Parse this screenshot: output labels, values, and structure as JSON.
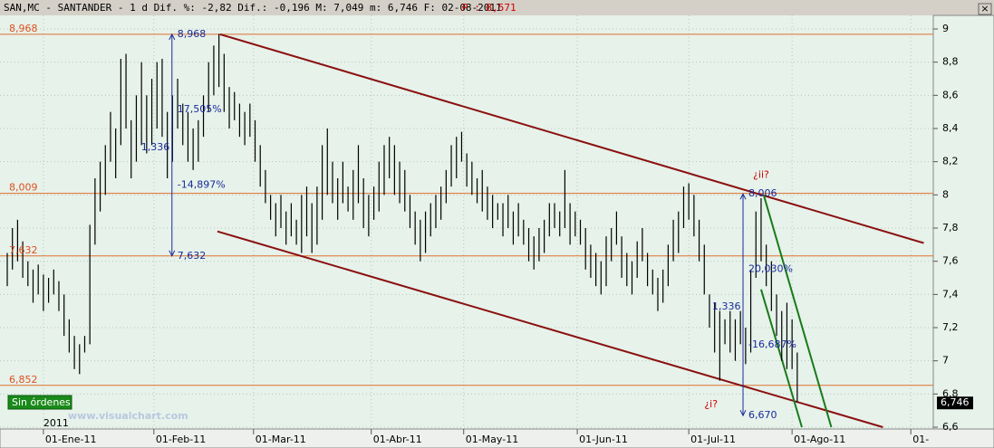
{
  "chart_data": {
    "type": "range-bar",
    "header": "SAN,MC - SANTANDER -  1 d Dif. %: -2,82 Dif.: -0,196 M: 7,049 m: 6,746 F: 02-08-2011",
    "header_price": "P : 8,571",
    "color": "#000000",
    "lows": [
      7.45,
      7.55,
      7.6,
      7.5,
      7.45,
      7.35,
      7.4,
      7.3,
      7.35,
      7.4,
      7.3,
      7.15,
      7.05,
      6.95,
      6.92,
      7.05,
      7.1,
      7.7,
      7.9,
      8.0,
      8.2,
      8.1,
      8.3,
      8.4,
      8.1,
      8.2,
      8.3,
      8.25,
      8.3,
      8.4,
      8.35,
      8.1,
      8.2,
      8.4,
      8.3,
      8.2,
      8.15,
      8.2,
      8.35,
      8.5,
      8.6,
      8.65,
      8.5,
      8.4,
      8.45,
      8.35,
      8.3,
      8.35,
      8.2,
      8.05,
      7.95,
      7.85,
      7.75,
      7.8,
      7.7,
      7.75,
      7.7,
      7.65,
      7.75,
      7.65,
      7.7,
      7.85,
      8.0,
      7.95,
      7.85,
      7.95,
      7.9,
      7.85,
      7.95,
      7.8,
      7.75,
      7.85,
      7.9,
      8.0,
      8.1,
      8.0,
      7.95,
      7.9,
      7.8,
      7.7,
      7.6,
      7.65,
      7.75,
      7.8,
      7.85,
      7.95,
      8.05,
      8.1,
      8.2,
      8.05,
      8.0,
      7.95,
      7.9,
      7.85,
      7.8,
      7.85,
      7.75,
      7.8,
      7.7,
      7.75,
      7.7,
      7.6,
      7.55,
      7.6,
      7.65,
      7.75,
      7.8,
      7.75,
      7.8,
      7.7,
      7.75,
      7.7,
      7.55,
      7.5,
      7.45,
      7.4,
      7.45,
      7.6,
      7.7,
      7.5,
      7.45,
      7.4,
      7.5,
      7.6,
      7.45,
      7.4,
      7.3,
      7.35,
      7.45,
      7.6,
      7.65,
      7.8,
      7.85,
      7.75,
      7.6,
      7.4,
      7.2,
      7.05,
      6.88,
      7.1,
      7.05,
      7.0,
      7.1,
      6.98,
      7.05,
      7.5,
      7.6,
      7.45,
      7.3,
      7.15,
      7.0,
      6.95,
      6.95,
      6.75
    ],
    "highs": [
      7.65,
      7.8,
      7.85,
      7.72,
      7.6,
      7.55,
      7.58,
      7.52,
      7.5,
      7.55,
      7.48,
      7.4,
      7.25,
      7.15,
      7.1,
      7.15,
      7.82,
      8.1,
      8.2,
      8.3,
      8.5,
      8.4,
      8.82,
      8.85,
      8.45,
      8.6,
      8.8,
      8.6,
      8.7,
      8.8,
      8.82,
      8.5,
      8.6,
      8.7,
      8.55,
      8.5,
      8.4,
      8.45,
      8.6,
      8.8,
      8.9,
      8.97,
      8.85,
      8.65,
      8.62,
      8.55,
      8.5,
      8.55,
      8.45,
      8.3,
      8.15,
      8.0,
      7.95,
      8.0,
      7.9,
      7.95,
      7.85,
      8.0,
      8.05,
      7.95,
      8.05,
      8.3,
      8.4,
      8.2,
      8.1,
      8.2,
      8.05,
      8.15,
      8.3,
      8.1,
      8.0,
      8.05,
      8.2,
      8.3,
      8.35,
      8.3,
      8.2,
      8.15,
      8.0,
      7.9,
      7.85,
      7.9,
      7.95,
      8.0,
      8.05,
      8.15,
      8.3,
      8.35,
      8.38,
      8.25,
      8.2,
      8.1,
      8.15,
      8.05,
      8.0,
      7.95,
      7.95,
      8.0,
      7.9,
      7.95,
      7.85,
      7.8,
      7.75,
      7.8,
      7.85,
      7.95,
      7.95,
      7.9,
      8.15,
      7.95,
      7.9,
      7.85,
      7.8,
      7.7,
      7.65,
      7.6,
      7.75,
      7.8,
      7.9,
      7.75,
      7.65,
      7.6,
      7.72,
      7.8,
      7.65,
      7.55,
      7.5,
      7.55,
      7.7,
      7.85,
      7.9,
      8.05,
      8.07,
      8.0,
      7.85,
      7.7,
      7.4,
      7.35,
      7.3,
      7.25,
      7.3,
      7.25,
      7.3,
      7.2,
      7.55,
      7.9,
      7.98,
      7.7,
      7.6,
      7.4,
      7.3,
      7.35,
      7.25,
      7.05
    ],
    "xlim": [
      0,
      179
    ],
    "xticks": [
      {
        "value": 7,
        "label": "01-Ene-11"
      },
      {
        "value": 28.4,
        "label": "01-Feb-11"
      },
      {
        "value": 47.7,
        "label": "01-Mar-11"
      },
      {
        "value": 70.5,
        "label": "01-Abr-11"
      },
      {
        "value": 88.4,
        "label": "01-May-11"
      },
      {
        "value": 110.4,
        "label": "01-Jun-11"
      },
      {
        "value": 132,
        "label": "01-Jul-11"
      },
      {
        "value": 152,
        "label": "01-Ago-11"
      },
      {
        "value": 175,
        "label": "01-"
      }
    ],
    "year": "2011",
    "ylim": [
      6.6,
      9.04
    ],
    "yticks": [
      {
        "value": 9,
        "label": "9"
      },
      {
        "value": 8.8,
        "label": "8,8"
      },
      {
        "value": 8.6,
        "label": "8,6"
      },
      {
        "value": 8.4,
        "label": "8,4"
      },
      {
        "value": 8.2,
        "label": "8,2"
      },
      {
        "value": 8,
        "label": "8"
      },
      {
        "value": 7.8,
        "label": "7,8"
      },
      {
        "value": 7.6,
        "label": "7,6"
      },
      {
        "value": 7.4,
        "label": "7,4"
      },
      {
        "value": 7.2,
        "label": "7,2"
      },
      {
        "value": 7,
        "label": "7"
      },
      {
        "value": 6.8,
        "label": "6,8"
      },
      {
        "value": 6.6,
        "label": "6,6"
      }
    ],
    "grid": true,
    "levels": [
      {
        "value": 8.968,
        "label": "8,968"
      },
      {
        "value": 8.009,
        "label": "8,009"
      },
      {
        "value": 7.632,
        "label": "7,632"
      },
      {
        "value": 6.852,
        "label": "6,852"
      }
    ],
    "measures": [
      {
        "high": {
          "value": 8.968,
          "label": "8,968"
        },
        "low": {
          "value": 7.632,
          "label": "7,632"
        },
        "rise": "17,505%",
        "diff": "1,336",
        "fall": "-14,897%"
      },
      {
        "high": {
          "value": 8.006,
          "label": "8,006"
        },
        "low": {
          "value": 6.67,
          "label": "6,670"
        },
        "rise": "20,030%",
        "diff": "1,336",
        "fall": "-16,687%"
      }
    ],
    "notes": [
      "¿ii?",
      "¿i?"
    ],
    "last": {
      "value": 6.746,
      "label": "6,746"
    },
    "orders": "Sin órdenes",
    "watermark": "www.visualchart.com"
  }
}
